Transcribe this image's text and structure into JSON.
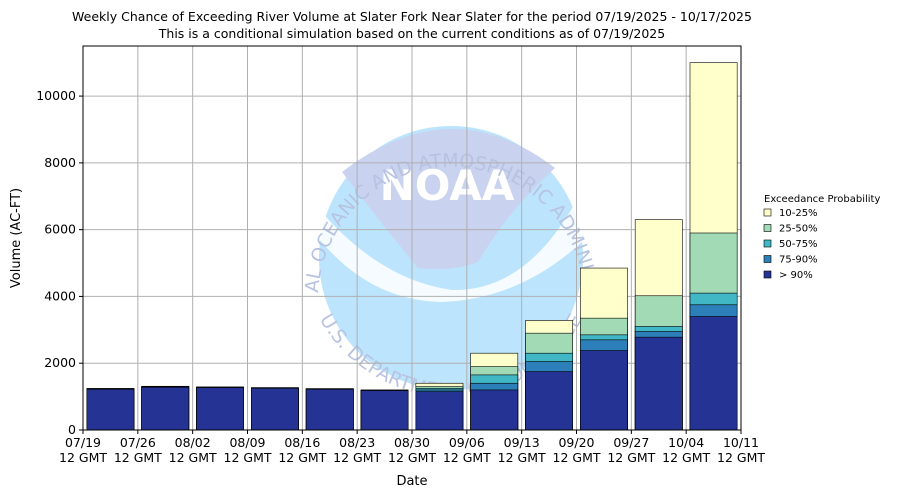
{
  "chart_data": {
    "type": "bar",
    "title": "Weekly Chance of Exceeding River Volume at Slater Fork Near Slater for the period 07/19/2025 - 10/17/2025",
    "subtitle": "This is a conditional simulation based on the current conditions as of 07/19/2025",
    "xlabel": "Date",
    "ylabel": "Volume (AC-FT)",
    "ylim": [
      0,
      11500
    ],
    "yticks": [
      0,
      2000,
      4000,
      6000,
      8000,
      10000
    ],
    "grid": true,
    "xticks": [
      {
        "date": "07/19",
        "time": "12 GMT"
      },
      {
        "date": "07/26",
        "time": "12 GMT"
      },
      {
        "date": "08/02",
        "time": "12 GMT"
      },
      {
        "date": "08/09",
        "time": "12 GMT"
      },
      {
        "date": "08/16",
        "time": "12 GMT"
      },
      {
        "date": "08/23",
        "time": "12 GMT"
      },
      {
        "date": "08/30",
        "time": "12 GMT"
      },
      {
        "date": "09/06",
        "time": "12 GMT"
      },
      {
        "date": "09/13",
        "time": "12 GMT"
      },
      {
        "date": "09/20",
        "time": "12 GMT"
      },
      {
        "date": "09/27",
        "time": "12 GMT"
      },
      {
        "date": "10/04",
        "time": "12 GMT"
      },
      {
        "date": "10/11",
        "time": "12 GMT"
      }
    ],
    "legend_title": "Exceedance Probability",
    "legend_placement": "right",
    "series": [
      {
        "name": "> 90%",
        "color": "#253494",
        "values": [
          1220,
          1280,
          1270,
          1250,
          1220,
          1180,
          1150,
          1200,
          1750,
          2380,
          2780,
          3400
        ]
      },
      {
        "name": "75-90%",
        "color": "#2c7fb8",
        "values": [
          1230,
          1290,
          1275,
          1255,
          1225,
          1185,
          1200,
          1400,
          2050,
          2700,
          2950,
          3750
        ]
      },
      {
        "name": "50-75%",
        "color": "#41b6c4",
        "values": [
          1235,
          1295,
          1280,
          1260,
          1230,
          1190,
          1250,
          1650,
          2300,
          2850,
          3100,
          4100
        ]
      },
      {
        "name": "25-50%",
        "color": "#a1dab4",
        "values": [
          1240,
          1300,
          1285,
          1265,
          1235,
          1195,
          1300,
          1900,
          2900,
          3350,
          4020,
          5900
        ]
      },
      {
        "name": "10-25%",
        "color": "#ffffcc",
        "values": [
          1245,
          1310,
          1290,
          1270,
          1240,
          1200,
          1400,
          2300,
          3280,
          4850,
          6300,
          11000
        ]
      }
    ],
    "watermark": {
      "logo_text": "NOAA",
      "top_arc": "NATIONAL OCEANIC AND ATMOSPHERIC ADMINISTRATION",
      "bottom_arc": "U.S. DEPARTMENT OF COMMERCE"
    }
  }
}
